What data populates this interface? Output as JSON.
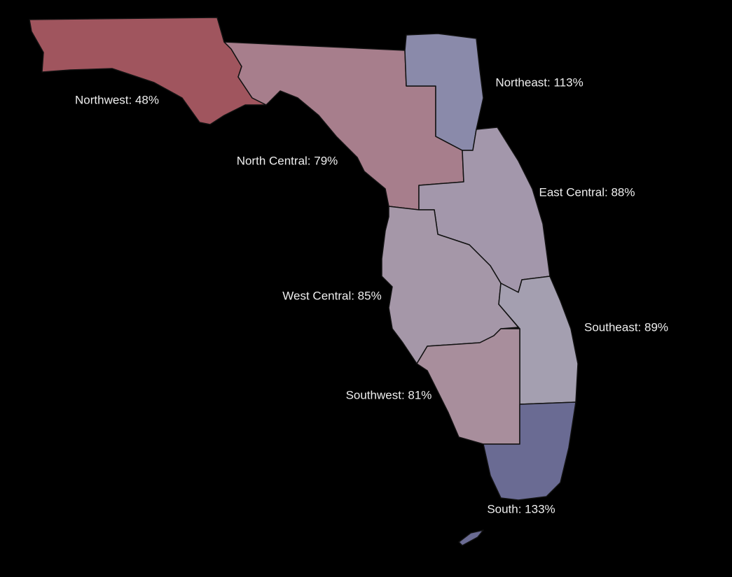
{
  "regions": [
    {
      "label": "Northwest: 48%",
      "value": 48,
      "color": "#a0555e"
    },
    {
      "label": "North Central: 79%",
      "value": 79,
      "color": "#a77e8c"
    },
    {
      "label": "Northeast: 113%",
      "value": 113,
      "color": "#8a8aaa"
    },
    {
      "label": "East Central: 88%",
      "value": 88,
      "color": "#a397ab"
    },
    {
      "label": "West Central: 85%",
      "value": 85,
      "color": "#a597a8"
    },
    {
      "label": "Southeast: 89%",
      "value": 89,
      "color": "#a49fb0"
    },
    {
      "label": "Southwest: 81%",
      "value": 81,
      "color": "#a88e9c"
    },
    {
      "label": "South: 133%",
      "value": 133,
      "color": "#6a6b93"
    }
  ]
}
